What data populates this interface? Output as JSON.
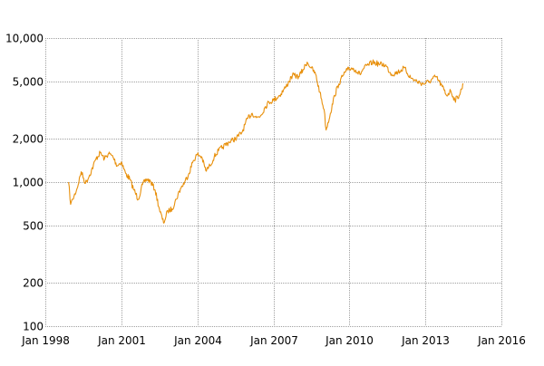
{
  "chart_data": {
    "type": "line",
    "title": "",
    "xlabel": "",
    "ylabel": "",
    "y_scale": "log",
    "ylim": [
      100,
      10000
    ],
    "xlim": [
      "1998-01",
      "2016-01"
    ],
    "grid": true,
    "legend": "none",
    "y_ticks": [
      {
        "value": 100,
        "label": "100"
      },
      {
        "value": 200,
        "label": "200"
      },
      {
        "value": 500,
        "label": "500"
      },
      {
        "value": 1000,
        "label": "1,000"
      },
      {
        "value": 2000,
        "label": "2,000"
      },
      {
        "value": 5000,
        "label": "5,000"
      },
      {
        "value": 10000,
        "label": "10,000"
      }
    ],
    "x_ticks": [
      {
        "value": "1998-01",
        "label": "Jan 1998"
      },
      {
        "value": "2001-01",
        "label": "Jan 2001"
      },
      {
        "value": "2004-01",
        "label": "Jan 2004"
      },
      {
        "value": "2007-01",
        "label": "Jan 2007"
      },
      {
        "value": "2010-01",
        "label": "Jan 2010"
      },
      {
        "value": "2013-01",
        "label": "Jan 2013"
      },
      {
        "value": "2016-01",
        "label": "Jan 2016"
      }
    ],
    "series": [
      {
        "color": "#e8900c",
        "points": [
          [
            "1998-12",
            1000
          ],
          [
            "1999-01",
            700
          ],
          [
            "1999-02",
            760
          ],
          [
            "1999-04",
            900
          ],
          [
            "1999-06",
            1180
          ],
          [
            "1999-08",
            980
          ],
          [
            "1999-10",
            1120
          ],
          [
            "2000-01",
            1450
          ],
          [
            "2000-03",
            1600
          ],
          [
            "2000-05",
            1450
          ],
          [
            "2000-07",
            1580
          ],
          [
            "2000-09",
            1500
          ],
          [
            "2000-11",
            1300
          ],
          [
            "2001-01",
            1380
          ],
          [
            "2001-03",
            1150
          ],
          [
            "2001-05",
            1050
          ],
          [
            "2001-07",
            880
          ],
          [
            "2001-09",
            760
          ],
          [
            "2001-11",
            960
          ],
          [
            "2002-01",
            1050
          ],
          [
            "2002-03",
            1000
          ],
          [
            "2002-05",
            880
          ],
          [
            "2002-07",
            650
          ],
          [
            "2002-09",
            520
          ],
          [
            "2002-11",
            630
          ],
          [
            "2003-01",
            650
          ],
          [
            "2003-03",
            760
          ],
          [
            "2003-05",
            900
          ],
          [
            "2003-07",
            1000
          ],
          [
            "2003-09",
            1150
          ],
          [
            "2003-11",
            1400
          ],
          [
            "2004-01",
            1560
          ],
          [
            "2004-03",
            1500
          ],
          [
            "2004-05",
            1200
          ],
          [
            "2004-07",
            1300
          ],
          [
            "2004-09",
            1500
          ],
          [
            "2004-11",
            1650
          ],
          [
            "2005-01",
            1750
          ],
          [
            "2005-04",
            1900
          ],
          [
            "2005-07",
            2000
          ],
          [
            "2005-10",
            2200
          ],
          [
            "2006-01",
            2800
          ],
          [
            "2006-03",
            3000
          ],
          [
            "2006-05",
            2800
          ],
          [
            "2006-07",
            2900
          ],
          [
            "2006-09",
            3300
          ],
          [
            "2006-11",
            3600
          ],
          [
            "2007-01",
            3700
          ],
          [
            "2007-04",
            4000
          ],
          [
            "2007-07",
            4600
          ],
          [
            "2007-10",
            5500
          ],
          [
            "2008-01",
            5400
          ],
          [
            "2008-03",
            6000
          ],
          [
            "2008-05",
            6800
          ],
          [
            "2008-07",
            6200
          ],
          [
            "2008-09",
            5600
          ],
          [
            "2008-11",
            4200
          ],
          [
            "2009-01",
            3200
          ],
          [
            "2009-02",
            2300
          ],
          [
            "2009-04",
            3000
          ],
          [
            "2009-06",
            4000
          ],
          [
            "2009-08",
            4800
          ],
          [
            "2009-10",
            5500
          ],
          [
            "2009-12",
            6000
          ],
          [
            "2010-02",
            6200
          ],
          [
            "2010-04",
            6000
          ],
          [
            "2010-06",
            5600
          ],
          [
            "2010-08",
            6200
          ],
          [
            "2010-10",
            6500
          ],
          [
            "2010-12",
            6800
          ],
          [
            "2011-03",
            6600
          ],
          [
            "2011-06",
            6500
          ],
          [
            "2011-09",
            5600
          ],
          [
            "2011-12",
            5800
          ],
          [
            "2012-03",
            6200
          ],
          [
            "2012-06",
            5300
          ],
          [
            "2012-09",
            5000
          ],
          [
            "2012-12",
            4800
          ],
          [
            "2013-03",
            5000
          ],
          [
            "2013-06",
            5400
          ],
          [
            "2013-09",
            4600
          ],
          [
            "2013-11",
            4000
          ],
          [
            "2014-01",
            4300
          ],
          [
            "2014-03",
            3700
          ],
          [
            "2014-05",
            4000
          ],
          [
            "2014-07",
            4800
          ]
        ]
      }
    ]
  }
}
